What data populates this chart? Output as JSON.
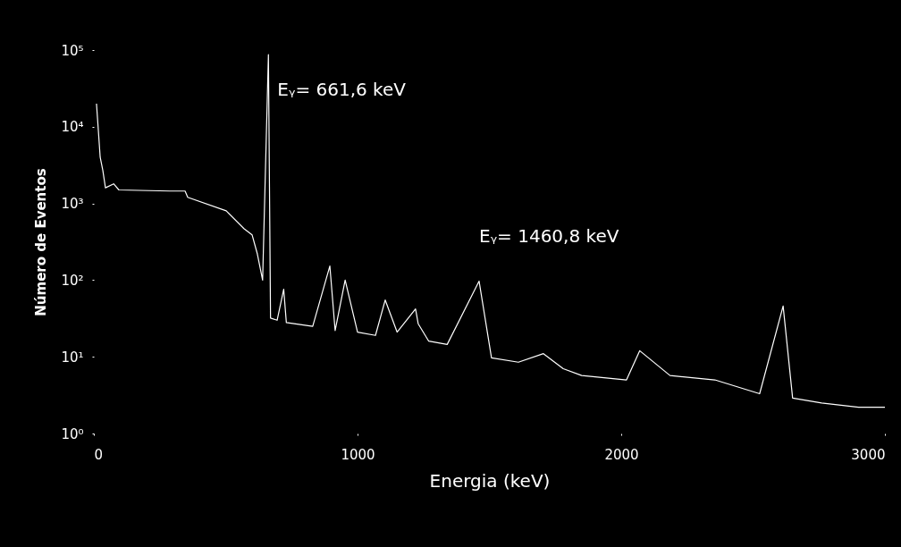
{
  "chart_data": {
    "type": "line",
    "xlabel": "Energia (keV)",
    "ylabel": "Número de Eventos",
    "x": [
      10,
      17,
      24,
      34,
      44,
      75,
      95,
      288,
      346,
      356,
      502,
      569,
      600,
      620,
      640,
      662,
      670,
      695,
      720,
      730,
      830,
      895,
      915,
      953,
      1000,
      1068,
      1105,
      1150,
      1220,
      1230,
      1270,
      1340,
      1461,
      1508,
      1610,
      1705,
      1780,
      1850,
      2020,
      2070,
      2185,
      2355,
      2525,
      2614,
      2650,
      2760,
      2900,
      3000
    ],
    "series": [
      {
        "color": "#ffffff",
        "values": [
          20000,
          9000,
          4000,
          2700,
          1600,
          1800,
          1500,
          1450,
          1450,
          1200,
          800,
          470,
          390,
          220,
          100,
          87000,
          32,
          30,
          76,
          28,
          25,
          153,
          22,
          100,
          21,
          19,
          55,
          21,
          42,
          27,
          16,
          14.5,
          97,
          9.7,
          8.5,
          11,
          7,
          5.7,
          5,
          12,
          5.7,
          5,
          3.3,
          46,
          2.9,
          2.5,
          2.2,
          2.2
        ]
      }
    ],
    "log": "y",
    "xlim": [
      0,
      3000
    ],
    "ylim": [
      1,
      100000
    ],
    "xticks": [
      0,
      1000,
      2000,
      3000
    ],
    "yticks": [
      {
        "value": 1,
        "label": "10⁰"
      },
      {
        "value": 10,
        "label": "10¹"
      },
      {
        "value": 100,
        "label": "10²"
      },
      {
        "value": 1000,
        "label": "10³"
      },
      {
        "value": 10000,
        "label": "10⁴"
      },
      {
        "value": 100000,
        "label": "10⁵"
      }
    ],
    "grid": false,
    "legend": false,
    "marker": "none",
    "line_style": "solid",
    "annotations": [
      {
        "text": "Eᵧ= 661,6 keV",
        "x": 662,
        "y": 87000
      },
      {
        "text": "Eᵧ= 1460,8 keV",
        "x": 1461,
        "y": 97
      }
    ]
  }
}
